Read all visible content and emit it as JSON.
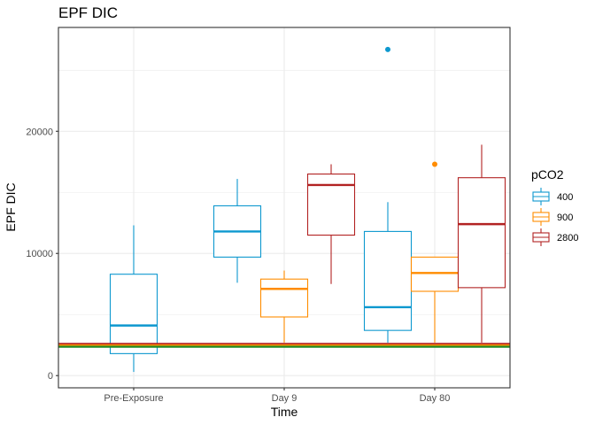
{
  "chart_data": {
    "type": "boxplot",
    "title": "EPF DIC",
    "xlabel": "Time",
    "ylabel": "EPF DIC",
    "categories": [
      "Pre-Exposure",
      "Day 9",
      "Day 80"
    ],
    "ylim": [
      -1000,
      28500
    ],
    "yticks": [
      0,
      10000,
      20000
    ],
    "ytick_labels": [
      "0",
      "10000",
      "20000"
    ],
    "grid": true,
    "legend": {
      "title": "pCO2",
      "position": "right"
    },
    "series": [
      {
        "name": "400",
        "color": "#0d98cf",
        "boxes": [
          {
            "category": "Pre-Exposure",
            "whisker_low": 300,
            "q1": 1800,
            "median": 4100,
            "q3": 8300,
            "whisker_high": 12300,
            "outliers": []
          },
          {
            "category": "Day 9",
            "whisker_low": 7600,
            "q1": 9700,
            "median": 11800,
            "q3": 13900,
            "whisker_high": 16100,
            "outliers": []
          },
          {
            "category": "Day 80",
            "whisker_low": 2700,
            "q1": 3700,
            "median": 5600,
            "q3": 11800,
            "whisker_high": 14200,
            "outliers": [
              26700
            ]
          }
        ]
      },
      {
        "name": "900",
        "color": "#ff8c00",
        "boxes": [
          {
            "category": "Day 9",
            "whisker_low": 2700,
            "q1": 4800,
            "median": 7100,
            "q3": 7900,
            "whisker_high": 8600,
            "outliers": []
          },
          {
            "category": "Day 80",
            "whisker_low": 2700,
            "q1": 6900,
            "median": 8400,
            "q3": 9700,
            "whisker_high": 9700,
            "outliers": [
              17300
            ]
          }
        ]
      },
      {
        "name": "2800",
        "color": "#b22222",
        "boxes": [
          {
            "category": "Day 9",
            "whisker_low": 7500,
            "q1": 11500,
            "median": 15600,
            "q3": 16500,
            "whisker_high": 17300,
            "outliers": []
          },
          {
            "category": "Day 80",
            "whisker_low": 2700,
            "q1": 7200,
            "median": 12400,
            "q3": 16200,
            "whisker_high": 18900,
            "outliers": []
          }
        ]
      }
    ],
    "reference_lines": [
      {
        "y": 2600,
        "color": "#b22222"
      },
      {
        "y": 2480,
        "color": "#ff8c00"
      },
      {
        "y": 2360,
        "color": "#228b22"
      }
    ]
  }
}
